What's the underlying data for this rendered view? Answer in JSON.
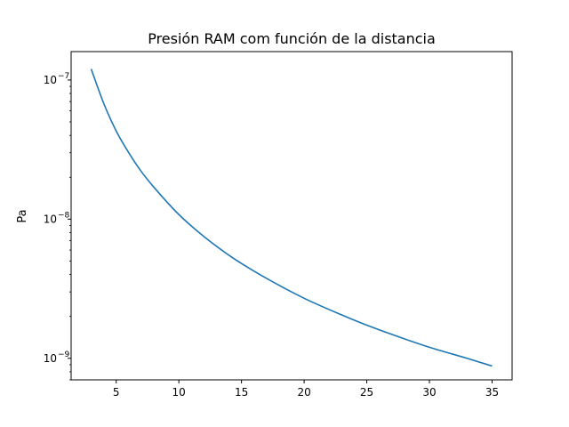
{
  "chart_data": {
    "type": "line",
    "title": "Presión RAM com función de la distancia",
    "xlabel": "",
    "ylabel": "Pa",
    "yscale": "log",
    "xlim": [
      1.4,
      36.6
    ],
    "ylim": [
      7e-10,
      1.6e-07
    ],
    "grid": false,
    "x_ticks": [
      5,
      10,
      15,
      20,
      25,
      30,
      35
    ],
    "x_tick_labels": [
      "5",
      "10",
      "15",
      "20",
      "25",
      "30",
      "35"
    ],
    "y_ticks": [
      1e-09,
      1e-08,
      1e-07
    ],
    "y_tick_labels": [
      {
        "base": "10",
        "exp": "−9"
      },
      {
        "base": "10",
        "exp": "−8"
      },
      {
        "base": "10",
        "exp": "−7"
      }
    ],
    "series": [
      {
        "color": "#1f77b4",
        "x": [
          3,
          4,
          5,
          6,
          7,
          8,
          10,
          12,
          14,
          15,
          17,
          20,
          23,
          25,
          28,
          30,
          33,
          35
        ],
        "y": [
          1.2e-07,
          6.8e-08,
          4.3e-08,
          3e-08,
          2.2e-08,
          1.7e-08,
          1.08e-08,
          7.5e-09,
          5.5e-09,
          4.8e-09,
          3.75e-09,
          2.7e-09,
          2.05e-09,
          1.73e-09,
          1.38e-09,
          1.2e-09,
          1e-09,
          8.8e-10
        ]
      }
    ]
  }
}
